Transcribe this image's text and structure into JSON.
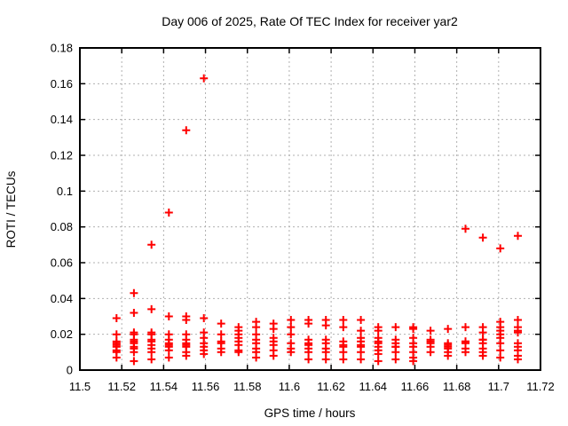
{
  "window": {
    "background": "#ffffff"
  },
  "chart_data": {
    "type": "scatter",
    "title": "Day 006 of 2025, Rate Of TEC Index for receiver yar2",
    "xlabel": "GPS time / hours",
    "ylabel": "ROTI / TECUs",
    "xlim": [
      11.5,
      11.72
    ],
    "ylim": [
      0,
      0.18
    ],
    "grid": true,
    "legend": "none",
    "marker": "plus",
    "colors": {
      "points": "#ff0000",
      "grid": "#b0b0b0",
      "axis": "#000000",
      "text": "#000000"
    },
    "xticks": [
      {
        "v": 11.5,
        "label": "11.5"
      },
      {
        "v": 11.52,
        "label": "11.52"
      },
      {
        "v": 11.54,
        "label": "11.54"
      },
      {
        "v": 11.56,
        "label": "11.56"
      },
      {
        "v": 11.58,
        "label": "11.58"
      },
      {
        "v": 11.6,
        "label": "11.6"
      },
      {
        "v": 11.62,
        "label": "11.62"
      },
      {
        "v": 11.64,
        "label": "11.64"
      },
      {
        "v": 11.66,
        "label": "11.66"
      },
      {
        "v": 11.68,
        "label": "11.68"
      },
      {
        "v": 11.7,
        "label": "11.7"
      },
      {
        "v": 11.72,
        "label": "11.72"
      }
    ],
    "yticks": [
      {
        "v": 0,
        "label": "0"
      },
      {
        "v": 0.02,
        "label": "0.02"
      },
      {
        "v": 0.04,
        "label": "0.04"
      },
      {
        "v": 0.06,
        "label": "0.06"
      },
      {
        "v": 0.08,
        "label": "0.08"
      },
      {
        "v": 0.1,
        "label": "0.1"
      },
      {
        "v": 0.12,
        "label": "0.12"
      },
      {
        "v": 0.14,
        "label": "0.14"
      },
      {
        "v": 0.16,
        "label": "0.16"
      },
      {
        "v": 0.18,
        "label": "0.18"
      }
    ],
    "series": [
      {
        "name": "ROTI",
        "columns": [
          {
            "t": 11.5175,
            "values": [
              0.029,
              0.02,
              0.016,
              0.015,
              0.014,
              0.013,
              0.011,
              0.01,
              0.007
            ]
          },
          {
            "t": 11.5258,
            "values": [
              0.043,
              0.032,
              0.021,
              0.02,
              0.017,
              0.016,
              0.015,
              0.013,
              0.012,
              0.01,
              0.005
            ]
          },
          {
            "t": 11.5342,
            "values": [
              0.07,
              0.034,
              0.021,
              0.02,
              0.017,
              0.016,
              0.014,
              0.012,
              0.01,
              0.006
            ]
          },
          {
            "t": 11.5425,
            "values": [
              0.088,
              0.03,
              0.02,
              0.017,
              0.015,
              0.014,
              0.013,
              0.011,
              0.007
            ]
          },
          {
            "t": 11.5508,
            "values": [
              0.134,
              0.03,
              0.028,
              0.02,
              0.017,
              0.015,
              0.014,
              0.013,
              0.01,
              0.008
            ]
          },
          {
            "t": 11.5592,
            "values": [
              0.163,
              0.029,
              0.021,
              0.018,
              0.015,
              0.013,
              0.011,
              0.009
            ]
          },
          {
            "t": 11.5675,
            "values": [
              0.026,
              0.02,
              0.016,
              0.015,
              0.012,
              0.01
            ]
          },
          {
            "t": 11.5758,
            "values": [
              0.024,
              0.022,
              0.02,
              0.018,
              0.016,
              0.014,
              0.011,
              0.01
            ]
          },
          {
            "t": 11.5842,
            "values": [
              0.027,
              0.024,
              0.02,
              0.017,
              0.015,
              0.012,
              0.01,
              0.007
            ]
          },
          {
            "t": 11.5925,
            "values": [
              0.026,
              0.023,
              0.018,
              0.016,
              0.014,
              0.011,
              0.008
            ]
          },
          {
            "t": 11.6008,
            "values": [
              0.028,
              0.024,
              0.02,
              0.015,
              0.012,
              0.01
            ]
          },
          {
            "t": 11.6092,
            "values": [
              0.028,
              0.026,
              0.017,
              0.015,
              0.014,
              0.012,
              0.01,
              0.006
            ]
          },
          {
            "t": 11.6175,
            "values": [
              0.028,
              0.025,
              0.017,
              0.015,
              0.012,
              0.01,
              0.006
            ]
          },
          {
            "t": 11.6258,
            "values": [
              0.028,
              0.024,
              0.016,
              0.014,
              0.013,
              0.01,
              0.006
            ]
          },
          {
            "t": 11.6342,
            "values": [
              0.028,
              0.022,
              0.018,
              0.016,
              0.014,
              0.013,
              0.01,
              0.006
            ]
          },
          {
            "t": 11.6425,
            "values": [
              0.024,
              0.022,
              0.018,
              0.016,
              0.015,
              0.013,
              0.011,
              0.009,
              0.005
            ]
          },
          {
            "t": 11.6508,
            "values": [
              0.024,
              0.017,
              0.015,
              0.013,
              0.013,
              0.01,
              0.006
            ]
          },
          {
            "t": 11.6592,
            "values": [
              0.024,
              0.023,
              0.018,
              0.015,
              0.013,
              0.01,
              0.007,
              0.005
            ]
          },
          {
            "t": 11.6675,
            "values": [
              0.022,
              0.017,
              0.016,
              0.015,
              0.013,
              0.01
            ]
          },
          {
            "t": 11.6758,
            "values": [
              0.023,
              0.015,
              0.014,
              0.013,
              0.012,
              0.01,
              0.008
            ]
          },
          {
            "t": 11.6842,
            "values": [
              0.079,
              0.024,
              0.016,
              0.016,
              0.015,
              0.012,
              0.01
            ]
          },
          {
            "t": 11.6925,
            "values": [
              0.074,
              0.024,
              0.021,
              0.017,
              0.017,
              0.015,
              0.012,
              0.01,
              0.008
            ]
          },
          {
            "t": 11.7008,
            "values": [
              0.068,
              0.027,
              0.024,
              0.022,
              0.02,
              0.018,
              0.015,
              0.011,
              0.007
            ]
          },
          {
            "t": 11.7092,
            "values": [
              0.075,
              0.028,
              0.024,
              0.022,
              0.021,
              0.015,
              0.013,
              0.011,
              0.008,
              0.006
            ]
          }
        ]
      }
    ]
  }
}
